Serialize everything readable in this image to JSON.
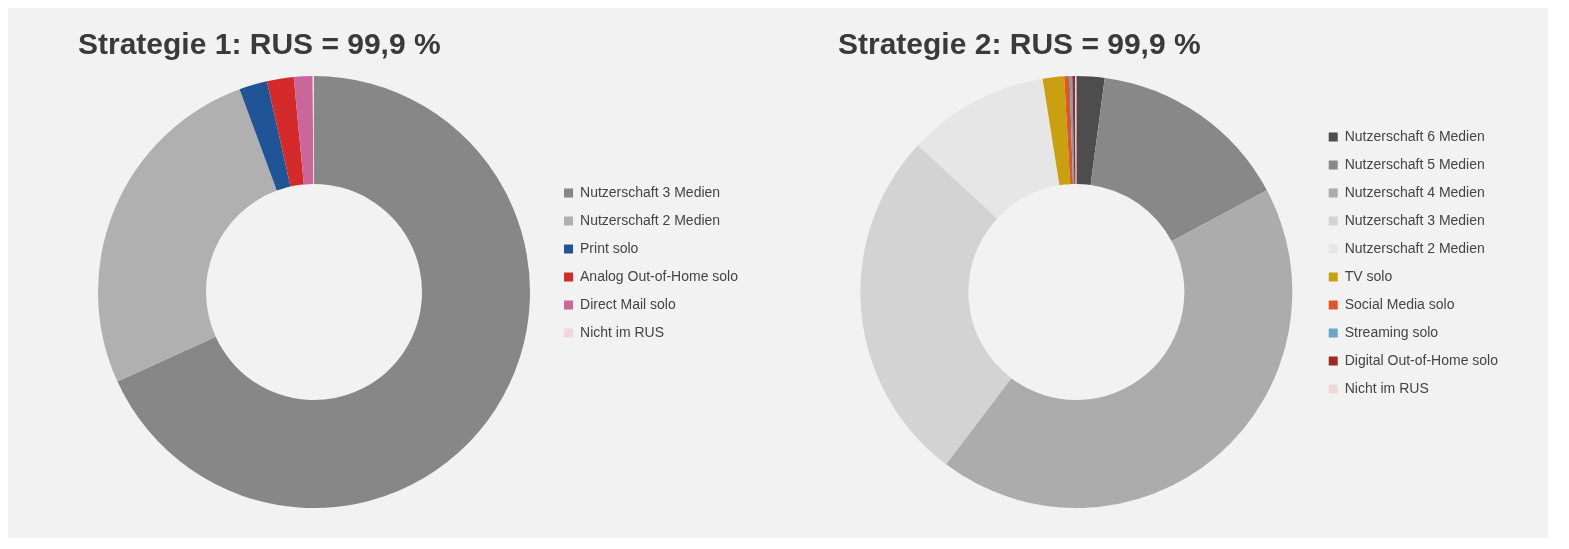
{
  "chart_data": [
    {
      "type": "donut",
      "title": "Strategie 1: RUS = 99,9 %",
      "legend": "right",
      "categories": [
        "Nutzerschaft 3 Medien",
        "Nutzerschaft 2 Medien",
        "Print solo",
        "Analog Out-of-Home solo",
        "Direct Mail solo",
        "Nicht im RUS"
      ],
      "values": [
        68.2,
        26.2,
        2.1,
        2.0,
        1.4,
        0.1
      ],
      "colors": [
        "#878787",
        "#b0b0b0",
        "#1f5596",
        "#d42a2a",
        "#c9679b",
        "#f0d8d8"
      ]
    },
    {
      "type": "donut",
      "title": "Strategie 2: RUS = 99,9 %",
      "legend": "right",
      "categories": [
        "Nutzerschaft 6 Medien",
        "Nutzerschaft 5 Medien",
        "Nutzerschaft 4 Medien",
        "Nutzerschaft 3 Medien",
        "Nutzerschaft 2 Medien",
        "TV solo",
        "Social Media solo",
        "Streaming solo",
        "Digital Out-of-Home solo",
        "Nicht im RUS"
      ],
      "values": [
        2.1,
        15.1,
        43.1,
        26.6,
        10.6,
        1.6,
        0.4,
        0.2,
        0.2,
        0.1
      ],
      "colors": [
        "#4d4d4d",
        "#888888",
        "#acacac",
        "#d3d3d3",
        "#e6e6e6",
        "#c9a010",
        "#e0562a",
        "#6aa6c8",
        "#9e2a22",
        "#f0d8d8"
      ]
    }
  ]
}
